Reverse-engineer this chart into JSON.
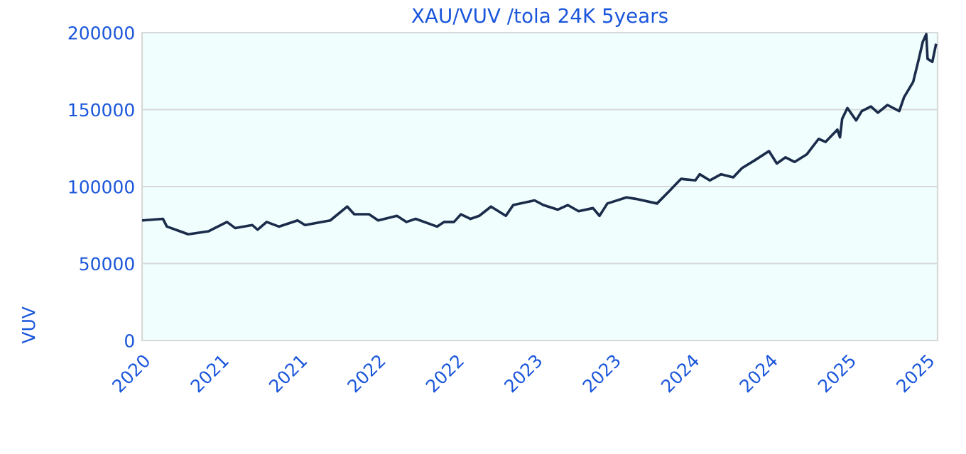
{
  "chart_data": {
    "type": "line",
    "title": "XAU/VUV /tola 24K 5years",
    "ylabel": "VUV",
    "x": [
      "2020-08-02",
      "2020-09-18",
      "2020-09-27",
      "2020-11-15",
      "2021-01-01",
      "2021-02-12",
      "2021-03-03",
      "2021-04-11",
      "2021-04-23",
      "2021-05-14",
      "2021-06-11",
      "2021-07-24",
      "2021-08-10",
      "2021-10-07",
      "2021-11-15",
      "2021-12-01",
      "2022-01-04",
      "2022-01-25",
      "2022-03-09",
      "2022-03-31",
      "2022-04-21",
      "2022-06-09",
      "2022-06-25",
      "2022-07-18",
      "2022-08-03",
      "2022-08-25",
      "2022-09-14",
      "2022-10-11",
      "2022-11-14",
      "2022-12-01",
      "2023-01-19",
      "2023-02-08",
      "2023-03-13",
      "2023-04-05",
      "2023-04-30",
      "2023-06-02",
      "2023-06-17",
      "2023-07-05",
      "2023-08-18",
      "2023-09-08",
      "2023-10-27",
      "2023-11-24",
      "2023-12-21",
      "2024-01-23",
      "2024-02-02",
      "2024-02-25",
      "2024-03-22",
      "2024-04-19",
      "2024-05-09",
      "2024-06-07",
      "2024-07-10",
      "2024-07-28",
      "2024-08-17",
      "2024-09-07",
      "2024-10-05",
      "2024-11-01",
      "2024-11-17",
      "2024-12-14",
      "2024-12-20",
      "2024-12-25",
      "2025-01-06",
      "2025-01-26",
      "2025-02-08",
      "2025-03-01",
      "2025-03-17",
      "2025-04-08",
      "2025-05-05",
      "2025-05-16",
      "2025-06-06",
      "2025-06-19",
      "2025-06-28",
      "2025-07-06",
      "2025-07-09",
      "2025-07-20",
      "2025-07-28"
    ],
    "series": [
      {
        "color": "#1b2c4b",
        "values": [
          78000,
          79000,
          74000,
          69000,
          71000,
          77000,
          73000,
          75000,
          72000,
          77000,
          74000,
          78000,
          75000,
          78000,
          87000,
          82000,
          82000,
          78000,
          81000,
          77000,
          79000,
          74000,
          77000,
          77000,
          82000,
          79000,
          81000,
          87000,
          81000,
          88000,
          91000,
          88000,
          85000,
          88000,
          84000,
          86000,
          81000,
          89000,
          93000,
          92000,
          89000,
          97000,
          105000,
          104000,
          108000,
          104000,
          108000,
          106000,
          112000,
          117000,
          123000,
          115000,
          119000,
          116000,
          121000,
          131000,
          129000,
          137000,
          132000,
          144000,
          151000,
          143000,
          149000,
          152000,
          148000,
          153000,
          149000,
          158000,
          168000,
          183000,
          194000,
          199000,
          183000,
          181000,
          192000
        ]
      }
    ],
    "xlim": [
      "2020-08-01",
      "2025-08-01"
    ],
    "xticks": [
      {
        "value": "2020-08-01",
        "label": "2020"
      },
      {
        "value": "2021-01-28",
        "label": "2021"
      },
      {
        "value": "2021-07-27",
        "label": "2021"
      },
      {
        "value": "2022-01-23",
        "label": "2022"
      },
      {
        "value": "2022-07-22",
        "label": "2022"
      },
      {
        "value": "2023-01-18",
        "label": "2023"
      },
      {
        "value": "2023-07-17",
        "label": "2023"
      },
      {
        "value": "2024-01-13",
        "label": "2024"
      },
      {
        "value": "2024-07-11",
        "label": "2024"
      },
      {
        "value": "2025-01-07",
        "label": "2025"
      },
      {
        "value": "2025-07-06",
        "label": "2025"
      }
    ],
    "ylim": [
      0,
      200000
    ],
    "yticks": [
      0,
      50000,
      100000,
      150000,
      200000
    ],
    "grid": "y",
    "marker": "none",
    "line_style": "solid",
    "legend": false
  }
}
